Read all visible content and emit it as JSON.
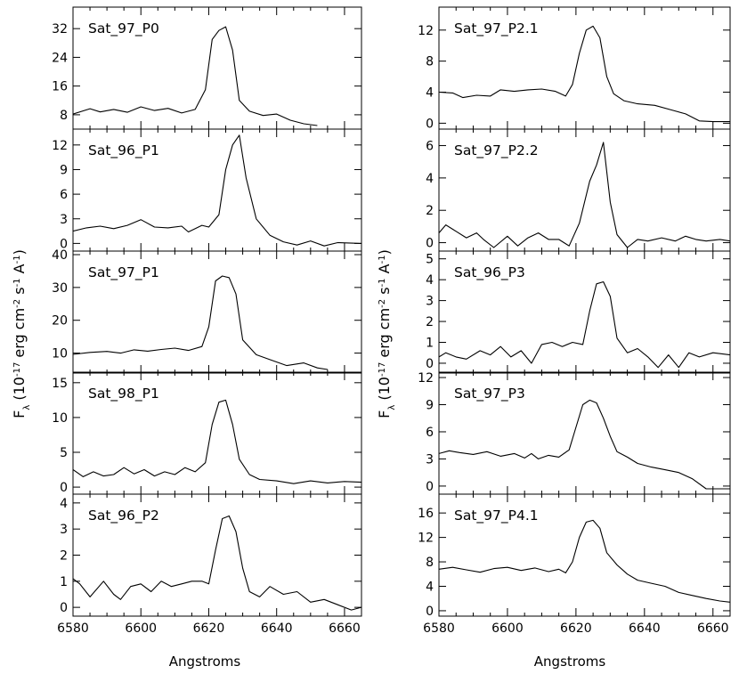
{
  "figure": {
    "ylabel_main": "F",
    "ylabel_sub": "λ",
    "ylabel_unit_open": " (10",
    "ylabel_exp1": "-17",
    "ylabel_mid1": " erg cm",
    "ylabel_exp2": "-2",
    "ylabel_mid2": " s",
    "ylabel_exp3": "-1",
    "ylabel_mid3": " A",
    "ylabel_exp4": "-1",
    "ylabel_close": ")",
    "xlabel": "Angstroms"
  },
  "chart_data": [
    {
      "type": "line",
      "title": "Sat_97_P0",
      "column": "left",
      "row": 0,
      "xlim": [
        6580,
        6665
      ],
      "ylim": [
        5,
        37
      ],
      "yticks": [
        "8",
        "16",
        "24",
        "32"
      ],
      "ytick_values": [
        8,
        16,
        24,
        32
      ],
      "x": [
        6580,
        6585,
        6588,
        6592,
        6596,
        6600,
        6604,
        6608,
        6612,
        6616,
        6619,
        6621,
        6623,
        6625,
        6627,
        6629,
        6632,
        6636,
        6640,
        6644,
        6648,
        6652
      ],
      "y": [
        8.2,
        9.7,
        8.8,
        9.5,
        8.7,
        10.2,
        9.2,
        9.8,
        8.5,
        9.5,
        15,
        29,
        31.5,
        32.5,
        26,
        12,
        9,
        7.8,
        8.2,
        6.5,
        5.5,
        5
      ]
    },
    {
      "type": "line",
      "title": "Sat_96_P1",
      "column": "left",
      "row": 1,
      "xlim": [
        6580,
        6665
      ],
      "ylim": [
        -0.5,
        13.5
      ],
      "yticks": [
        "0",
        "3",
        "6",
        "9",
        "12"
      ],
      "ytick_values": [
        0,
        3,
        6,
        9,
        12
      ],
      "x": [
        6580,
        6584,
        6588,
        6592,
        6596,
        6600,
        6604,
        6608,
        6612,
        6614,
        6618,
        6620,
        6623,
        6625,
        6627,
        6629,
        6631,
        6634,
        6638,
        6642,
        6646,
        6650,
        6654,
        6658,
        6665
      ],
      "y": [
        1.5,
        1.9,
        2.1,
        1.8,
        2.2,
        2.9,
        2,
        1.9,
        2.1,
        1.4,
        2.2,
        2,
        3.5,
        9,
        12,
        13.2,
        8,
        3,
        1,
        0.2,
        -0.2,
        0.3,
        -0.3,
        0.1,
        0
      ]
    },
    {
      "type": "line",
      "title": "Sat_97_P1",
      "column": "left",
      "row": 2,
      "xlim": [
        6580,
        6665
      ],
      "ylim": [
        5,
        40
      ],
      "yticks": [
        "10",
        "20",
        "30",
        "40"
      ],
      "ytick_values": [
        10,
        20,
        30,
        40
      ],
      "x": [
        6580,
        6585,
        6590,
        6594,
        6598,
        6602,
        6606,
        6610,
        6614,
        6618,
        6620,
        6622,
        6624,
        6626,
        6628,
        6630,
        6634,
        6638,
        6643,
        6648,
        6652,
        6655
      ],
      "y": [
        9.6,
        10.2,
        10.5,
        10,
        11,
        10.6,
        11.1,
        11.5,
        10.8,
        12,
        18,
        32,
        33.5,
        33,
        28,
        14,
        9.5,
        8,
        6.2,
        7,
        5.5,
        5
      ]
    },
    {
      "type": "line",
      "title": "Sat_98_P1",
      "column": "left",
      "row": 3,
      "xlim": [
        6580,
        6665
      ],
      "ylim": [
        -0.5,
        16
      ],
      "yticks": [
        "0",
        "5",
        "10",
        "15"
      ],
      "ytick_values": [
        0,
        5,
        10,
        15
      ],
      "x": [
        6580,
        6583,
        6586,
        6589,
        6592,
        6595,
        6598,
        6601,
        6604,
        6607,
        6610,
        6613,
        6616,
        6619,
        6621,
        6623,
        6625,
        6627,
        6629,
        6632,
        6635,
        6640,
        6645,
        6650,
        6655,
        6660,
        6665
      ],
      "y": [
        2.5,
        1.5,
        2.2,
        1.6,
        1.8,
        2.8,
        1.9,
        2.5,
        1.6,
        2.2,
        1.8,
        2.8,
        2.2,
        3.5,
        9,
        12.2,
        12.5,
        9,
        4,
        1.8,
        1.1,
        0.9,
        0.5,
        0.9,
        0.6,
        0.8,
        0.7
      ]
    },
    {
      "type": "line",
      "title": "Sat_96_P2",
      "column": "left",
      "row": 4,
      "xlim": [
        6580,
        6665
      ],
      "ylim": [
        -0.2,
        4.2
      ],
      "yticks": [
        "0",
        "1",
        "2",
        "3",
        "4"
      ],
      "ytick_values": [
        0,
        1,
        2,
        3,
        4
      ],
      "x": [
        6580,
        6582,
        6585,
        6589,
        6592,
        6594,
        6597,
        6600,
        6603,
        6606,
        6609,
        6612,
        6615,
        6618,
        6620,
        6622,
        6624,
        6626,
        6628,
        6630,
        6632,
        6635,
        6638,
        6642,
        6646,
        6650,
        6654,
        6658,
        6662,
        6665
      ],
      "y": [
        1.1,
        0.9,
        0.4,
        1,
        0.5,
        0.3,
        0.8,
        0.9,
        0.6,
        1,
        0.8,
        0.9,
        1,
        1,
        0.9,
        2.2,
        3.4,
        3.5,
        2.9,
        1.5,
        0.6,
        0.4,
        0.8,
        0.5,
        0.6,
        0.2,
        0.3,
        0.1,
        -0.1,
        0
      ]
    },
    {
      "type": "line",
      "title": "Sat_97_P2.1",
      "column": "right",
      "row": 0,
      "xlim": [
        6580,
        6665
      ],
      "ylim": [
        -0.3,
        14.5
      ],
      "yticks": [
        "0",
        "4",
        "8",
        "12"
      ],
      "ytick_values": [
        0,
        4,
        8,
        12
      ],
      "x": [
        6580,
        6584,
        6587,
        6591,
        6595,
        6598,
        6602,
        6606,
        6610,
        6614,
        6617,
        6619,
        6621,
        6623,
        6625,
        6627,
        6629,
        6631,
        6634,
        6638,
        6643,
        6648,
        6652,
        6656,
        6660,
        6665
      ],
      "y": [
        4,
        3.9,
        3.3,
        3.6,
        3.5,
        4.3,
        4.1,
        4.3,
        4.4,
        4.1,
        3.5,
        5,
        9,
        12,
        12.5,
        11,
        6,
        3.8,
        2.9,
        2.5,
        2.3,
        1.7,
        1.2,
        0.3,
        0.2,
        0.2
      ]
    },
    {
      "type": "line",
      "title": "Sat_97_P2.2",
      "column": "right",
      "row": 1,
      "xlim": [
        6580,
        6665
      ],
      "ylim": [
        -0.3,
        6.8
      ],
      "yticks": [
        "0",
        "2",
        "4",
        "6"
      ],
      "ytick_values": [
        0,
        2,
        4,
        6
      ],
      "x": [
        6580,
        6582,
        6585,
        6588,
        6591,
        6593,
        6596,
        6600,
        6603,
        6606,
        6609,
        6612,
        6615,
        6618,
        6621,
        6624,
        6626,
        6628,
        6630,
        6632,
        6635,
        6638,
        6641,
        6645,
        6649,
        6652,
        6655,
        6658,
        6662,
        6665
      ],
      "y": [
        0.6,
        1.1,
        0.7,
        0.3,
        0.6,
        0.2,
        -0.3,
        0.4,
        -0.2,
        0.3,
        0.6,
        0.2,
        0.2,
        -0.2,
        1.2,
        3.8,
        4.8,
        6.2,
        2.5,
        0.5,
        -0.3,
        0.2,
        0.1,
        0.3,
        0.1,
        0.4,
        0.2,
        0.1,
        0.2,
        0.1
      ]
    },
    {
      "type": "line",
      "title": "Sat_96_P3",
      "column": "right",
      "row": 2,
      "xlim": [
        6580,
        6665
      ],
      "ylim": [
        -0.3,
        5.2
      ],
      "yticks": [
        "0",
        "1",
        "2",
        "3",
        "4",
        "5"
      ],
      "ytick_values": [
        0,
        1,
        2,
        3,
        4,
        5
      ],
      "x": [
        6580,
        6582,
        6585,
        6588,
        6592,
        6595,
        6598,
        6601,
        6604,
        6607,
        6610,
        6613,
        6616,
        6619,
        6622,
        6624,
        6626,
        6628,
        6630,
        6632,
        6635,
        6638,
        6641,
        6644,
        6647,
        6650,
        6653,
        6656,
        6660,
        6665
      ],
      "y": [
        0.3,
        0.5,
        0.3,
        0.2,
        0.6,
        0.4,
        0.8,
        0.3,
        0.6,
        0,
        0.9,
        1,
        0.8,
        1,
        0.9,
        2.5,
        3.8,
        3.9,
        3.2,
        1.2,
        0.5,
        0.7,
        0.3,
        -0.2,
        0.4,
        -0.2,
        0.5,
        0.3,
        0.5,
        0.4
      ]
    },
    {
      "type": "line",
      "title": "Sat_97_P3",
      "column": "right",
      "row": 3,
      "xlim": [
        6580,
        6665
      ],
      "ylim": [
        -0.5,
        12.2
      ],
      "yticks": [
        "0",
        "3",
        "6",
        "9",
        "12"
      ],
      "ytick_values": [
        0,
        3,
        6,
        9,
        12
      ],
      "x": [
        6580,
        6583,
        6586,
        6590,
        6594,
        6598,
        6602,
        6605,
        6607,
        6609,
        6612,
        6615,
        6618,
        6620,
        6622,
        6624,
        6626,
        6628,
        6630,
        6632,
        6635,
        6638,
        6642,
        6646,
        6650,
        6654,
        6658,
        6662,
        6665
      ],
      "y": [
        3.6,
        3.9,
        3.7,
        3.5,
        3.8,
        3.3,
        3.6,
        3.1,
        3.6,
        3,
        3.4,
        3.2,
        4,
        6.5,
        9,
        9.5,
        9.2,
        7.5,
        5.5,
        3.8,
        3.2,
        2.5,
        2.1,
        1.8,
        1.5,
        0.8,
        -0.3,
        -0.3,
        -0.3
      ]
    },
    {
      "type": "line",
      "title": "Sat_97_P4.1",
      "column": "right",
      "row": 4,
      "xlim": [
        6580,
        6665
      ],
      "ylim": [
        -0.3,
        18.5
      ],
      "yticks": [
        "0",
        "4",
        "8",
        "12",
        "16"
      ],
      "ytick_values": [
        0,
        4,
        8,
        12,
        16
      ],
      "x": [
        6580,
        6584,
        6588,
        6592,
        6596,
        6600,
        6604,
        6608,
        6612,
        6615,
        6617,
        6619,
        6621,
        6623,
        6625,
        6627,
        6629,
        6632,
        6635,
        6638,
        6642,
        6646,
        6650,
        6654,
        6658,
        6662,
        6665
      ],
      "y": [
        6.8,
        7.1,
        6.7,
        6.3,
        6.9,
        7.1,
        6.6,
        7,
        6.4,
        6.8,
        6.2,
        8,
        12,
        14.5,
        14.8,
        13.5,
        9.5,
        7.5,
        6,
        5,
        4.5,
        4,
        3,
        2.5,
        2,
        1.6,
        1.4
      ]
    }
  ],
  "x_axis": {
    "ticks": [
      "6580",
      "6600",
      "6620",
      "6640",
      "6660"
    ],
    "tick_values": [
      6580,
      6600,
      6620,
      6640,
      6660
    ]
  }
}
